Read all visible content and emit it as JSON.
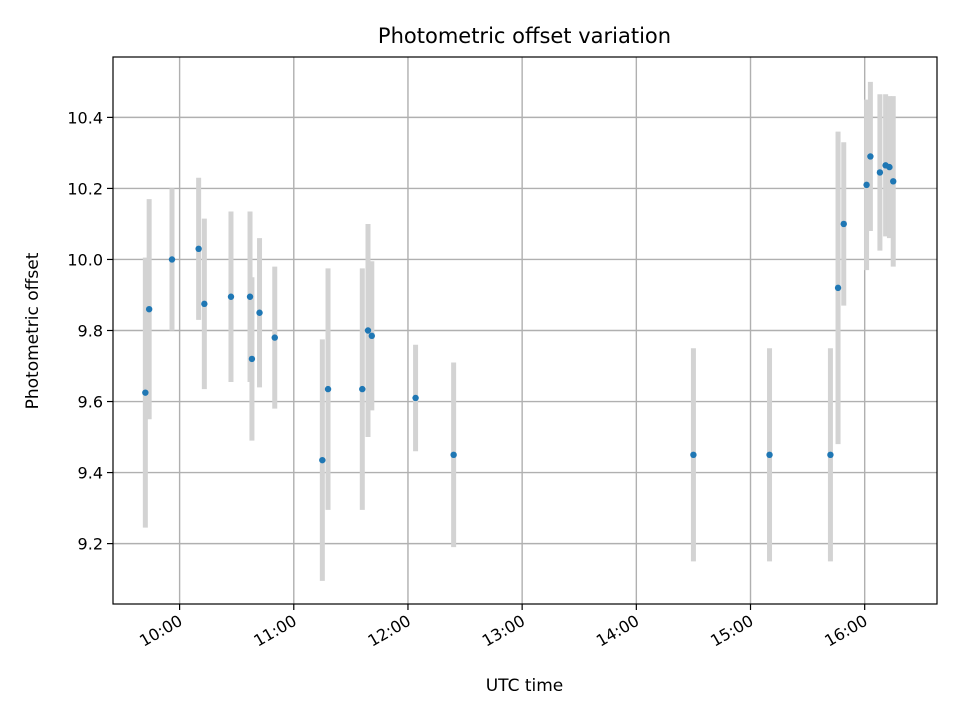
{
  "chart_data": {
    "type": "scatter",
    "title": "Photometric offset variation",
    "xlabel": "UTC time",
    "ylabel": "Photometric offset",
    "x_ticks": [
      "10:00",
      "11:00",
      "12:00",
      "13:00",
      "14:00",
      "15:00",
      "16:00"
    ],
    "y_ticks": [
      "9.2",
      "9.4",
      "9.6",
      "9.8",
      "10.0",
      "10.2",
      "10.4"
    ],
    "xlim": [
      "09:25",
      "16:38"
    ],
    "ylim": [
      9.03,
      10.57
    ],
    "grid": true,
    "colors": {
      "marker": "#1f77b4",
      "errorbar": "#d3d3d3",
      "grid": "#b0b0b0"
    },
    "points": [
      {
        "x": "09:42",
        "y": 9.625,
        "err": 0.38
      },
      {
        "x": "09:44",
        "y": 9.86,
        "err": 0.31
      },
      {
        "x": "09:56",
        "y": 10.0,
        "err": 0.2
      },
      {
        "x": "10:10",
        "y": 10.03,
        "err": 0.2
      },
      {
        "x": "10:13",
        "y": 9.875,
        "err": 0.24
      },
      {
        "x": "10:27",
        "y": 9.895,
        "err": 0.24
      },
      {
        "x": "10:37",
        "y": 9.895,
        "err": 0.24
      },
      {
        "x": "10:38",
        "y": 9.72,
        "err": 0.23
      },
      {
        "x": "10:42",
        "y": 9.85,
        "err": 0.21
      },
      {
        "x": "10:50",
        "y": 9.78,
        "err": 0.2
      },
      {
        "x": "11:15",
        "y": 9.435,
        "err": 0.34
      },
      {
        "x": "11:18",
        "y": 9.635,
        "err": 0.34
      },
      {
        "x": "11:36",
        "y": 9.635,
        "err": 0.34
      },
      {
        "x": "11:39",
        "y": 9.8,
        "err": 0.3
      },
      {
        "x": "11:41",
        "y": 9.785,
        "err": 0.21
      },
      {
        "x": "12:04",
        "y": 9.61,
        "err": 0.15
      },
      {
        "x": "12:24",
        "y": 9.45,
        "err": 0.26
      },
      {
        "x": "14:30",
        "y": 9.45,
        "err": 0.3
      },
      {
        "x": "15:10",
        "y": 9.45,
        "err": 0.3
      },
      {
        "x": "15:42",
        "y": 9.45,
        "err": 0.3
      },
      {
        "x": "15:46",
        "y": 9.92,
        "err": 0.44
      },
      {
        "x": "15:49",
        "y": 10.1,
        "err": 0.23
      },
      {
        "x": "16:01",
        "y": 10.21,
        "err": 0.24
      },
      {
        "x": "16:03",
        "y": 10.29,
        "err": 0.21
      },
      {
        "x": "16:08",
        "y": 10.245,
        "err": 0.22
      },
      {
        "x": "16:11",
        "y": 10.265,
        "err": 0.2
      },
      {
        "x": "16:13",
        "y": 10.26,
        "err": 0.2
      },
      {
        "x": "16:15",
        "y": 10.22,
        "err": 0.24
      }
    ]
  }
}
